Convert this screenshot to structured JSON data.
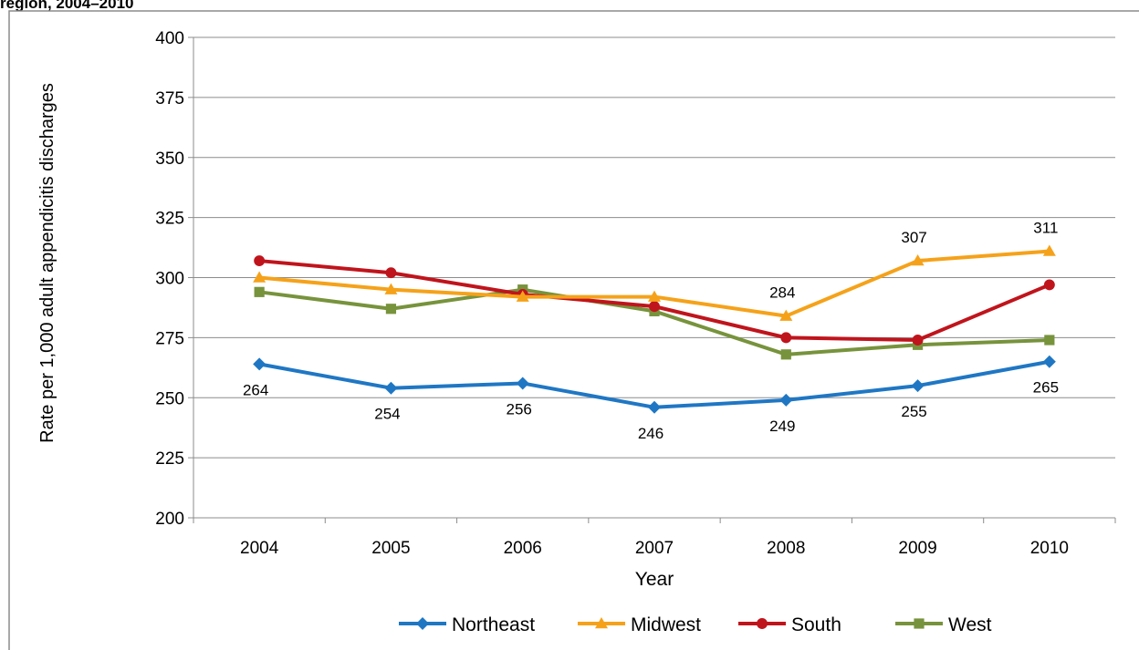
{
  "title_fragment": "region, 2004–2010",
  "chart_data": {
    "type": "line",
    "x": [
      "2004",
      "2005",
      "2006",
      "2007",
      "2008",
      "2009",
      "2010"
    ],
    "xlabel": "Year",
    "ylabel": "Rate per 1,000 adult appendicitis discharges",
    "ylim": [
      200,
      400
    ],
    "yticks": [
      200,
      225,
      250,
      275,
      300,
      325,
      350,
      375,
      400
    ],
    "grid": true,
    "legend": "bottom",
    "series": [
      {
        "name": "Northeast",
        "color": "#1f77c4",
        "marker": "diamond",
        "values": [
          264,
          254,
          256,
          246,
          249,
          255,
          265
        ],
        "labels": [
          "264",
          "254",
          "256",
          "246",
          "249",
          "255",
          "265"
        ],
        "label_pos": "below"
      },
      {
        "name": "Midwest",
        "color": "#f5a21a",
        "marker": "triangle",
        "values": [
          300,
          295,
          292,
          292,
          284,
          307,
          311
        ],
        "labels": [
          "",
          "",
          "",
          "",
          "284",
          "307",
          "311"
        ],
        "label_pos": "above"
      },
      {
        "name": "South",
        "color": "#c0141c",
        "marker": "circle",
        "values": [
          307,
          302,
          293,
          288,
          275,
          274,
          297
        ],
        "labels": [],
        "label_pos": "none"
      },
      {
        "name": "West",
        "color": "#77933c",
        "marker": "square",
        "values": [
          294,
          287,
          295,
          286,
          268,
          272,
          274
        ],
        "labels": [],
        "label_pos": "none"
      }
    ]
  }
}
